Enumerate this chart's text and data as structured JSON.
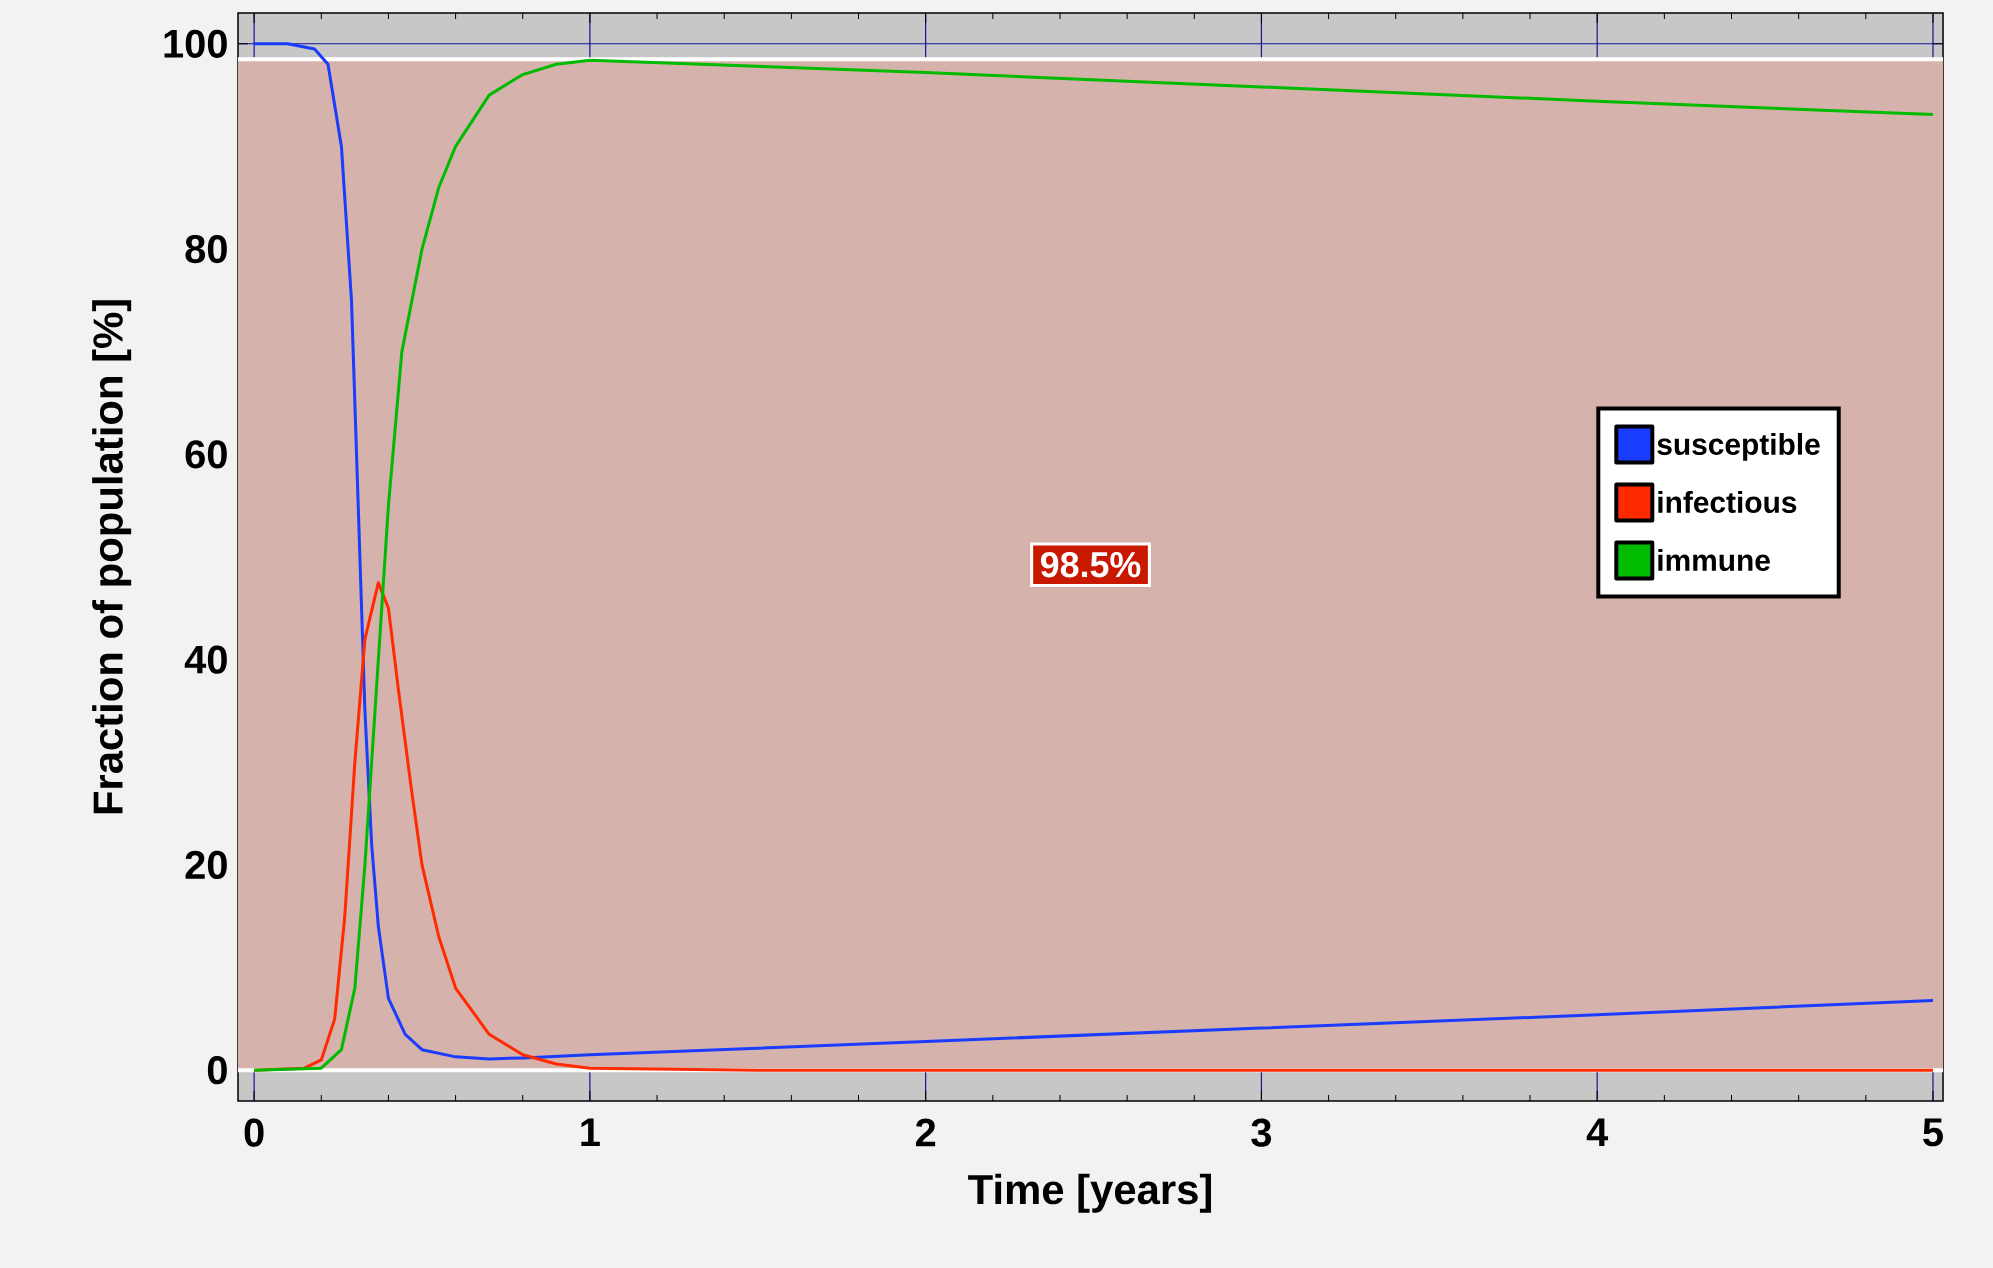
{
  "chart_data": {
    "type": "line",
    "xlabel": "Time [years]",
    "ylabel": "Fraction of population [%]",
    "xlim": [
      -0.048,
      5.03
    ],
    "ylim": [
      -3,
      103
    ],
    "xticks": [
      0,
      1,
      2,
      3,
      4,
      5
    ],
    "yticks": [
      0,
      20,
      40,
      60,
      80,
      100
    ],
    "grid": true,
    "legend": "right",
    "ref_lines": [
      {
        "axis": "y",
        "value": 0,
        "color": "#ffffff"
      },
      {
        "axis": "y",
        "value": 98.5,
        "color": "#ffffff"
      }
    ],
    "bands": [
      {
        "axis": "y",
        "from": 0,
        "to": 98.5,
        "label": "98.5%",
        "color": "#d6b2ac"
      }
    ],
    "series": [
      {
        "name": "susceptible",
        "color": "#1a3cff",
        "x": [
          0,
          0.1,
          0.18,
          0.22,
          0.26,
          0.29,
          0.31,
          0.33,
          0.35,
          0.37,
          0.4,
          0.45,
          0.5,
          0.6,
          0.7,
          0.8,
          1,
          2,
          3,
          4,
          5
        ],
        "values": [
          100,
          100,
          99.5,
          98,
          90,
          75,
          55,
          35,
          22,
          14,
          7,
          3.5,
          2,
          1.3,
          1.1,
          1.2,
          1.5,
          2.8,
          4.1,
          5.4,
          6.8
        ]
      },
      {
        "name": "infectious",
        "color": "#ff2a00",
        "x": [
          0,
          0.15,
          0.2,
          0.24,
          0.27,
          0.3,
          0.33,
          0.37,
          0.4,
          0.43,
          0.47,
          0.5,
          0.55,
          0.6,
          0.7,
          0.8,
          0.9,
          1,
          1.5,
          5
        ],
        "values": [
          0,
          0.2,
          1,
          5,
          15,
          30,
          42,
          47.5,
          45,
          37,
          27,
          20,
          13,
          8,
          3.5,
          1.5,
          0.6,
          0.2,
          0,
          0
        ]
      },
      {
        "name": "immune",
        "color": "#00bb00",
        "x": [
          0,
          0.2,
          0.26,
          0.3,
          0.33,
          0.36,
          0.4,
          0.44,
          0.5,
          0.55,
          0.6,
          0.7,
          0.8,
          0.9,
          1,
          2,
          3,
          4,
          5
        ],
        "values": [
          0,
          0.2,
          2,
          8,
          20,
          35,
          55,
          70,
          80,
          86,
          90,
          95,
          97,
          98,
          98.4,
          97.2,
          95.8,
          94.4,
          93.1
        ]
      }
    ]
  }
}
